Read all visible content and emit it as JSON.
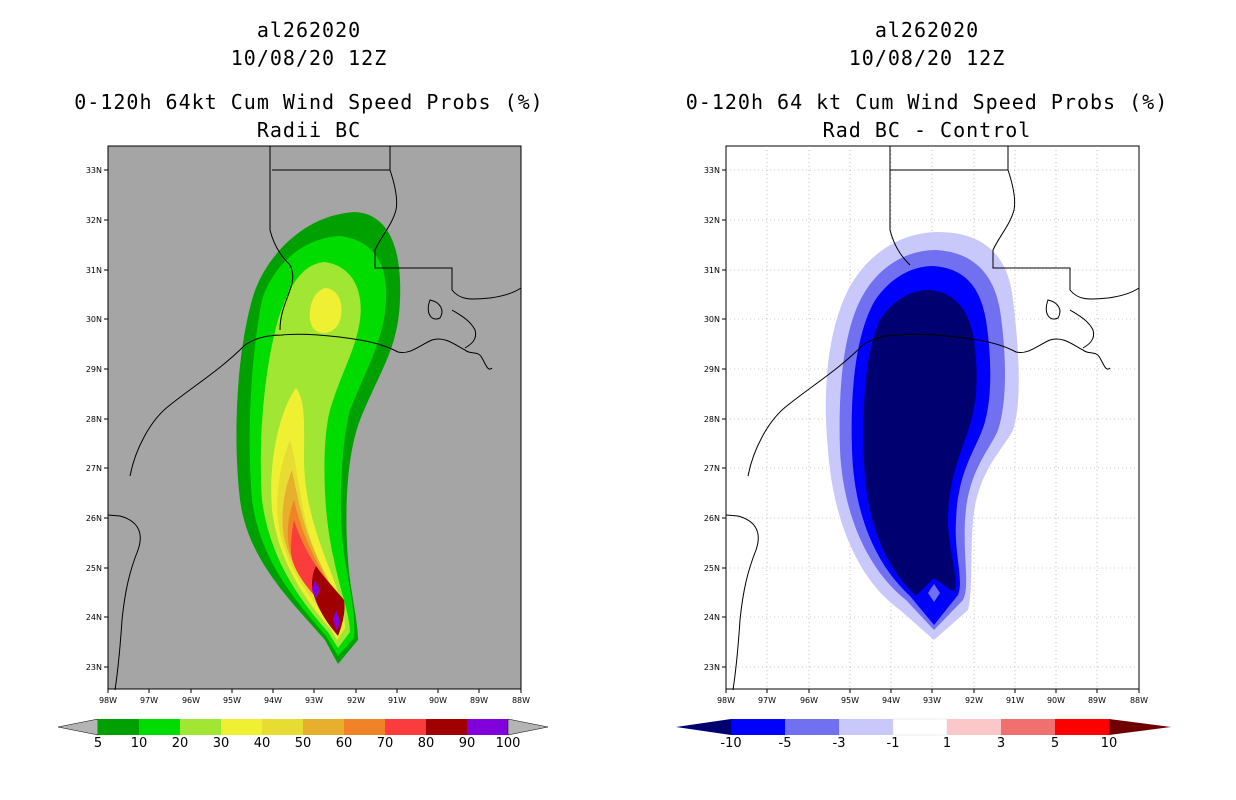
{
  "panels": [
    {
      "id": "radii",
      "title1": "al262020",
      "title2": "10/08/20 12Z",
      "title3": "0-120h 64kt Cum Wind Speed Probs (%)",
      "title4": "Radii BC",
      "bg": "#a5a5a5",
      "colorbar": {
        "labels": [
          "5",
          "10",
          "20",
          "30",
          "40",
          "50",
          "60",
          "70",
          "80",
          "90",
          "100"
        ],
        "colors": [
          "#00a000",
          "#00dc00",
          "#a0e632",
          "#f0f032",
          "#e6dc32",
          "#e6af2d",
          "#f08228",
          "#fa3c3c",
          "#a00000",
          "#8200dc"
        ],
        "end_low": "#b4b4b4",
        "end_high": "#b4b4b4"
      }
    },
    {
      "id": "diff",
      "title1": "al262020",
      "title2": "10/08/20 12Z",
      "title3": "0-120h 64 kt Cum Wind Speed Probs (%)",
      "title4": "Rad BC - Control",
      "bg": "#ffffff",
      "colorbar": {
        "labels": [
          "-10",
          "-5",
          "-3",
          "-1",
          "1",
          "3",
          "5",
          "10"
        ],
        "colors": [
          "#0000ff",
          "#7070f0",
          "#c8c8fa",
          "#ffffff",
          "#fac8c8",
          "#f07070",
          "#ff0000"
        ],
        "end_low": "#000070",
        "end_high": "#700000"
      }
    }
  ],
  "axes": {
    "lon_labels": [
      "98W",
      "97W",
      "96W",
      "95W",
      "94W",
      "93W",
      "92W",
      "91W",
      "90W",
      "89W",
      "88W"
    ],
    "lat_labels": [
      "23N",
      "24N",
      "25N",
      "26N",
      "27N",
      "28N",
      "29N",
      "30N",
      "31N",
      "32N",
      "33N"
    ]
  }
}
